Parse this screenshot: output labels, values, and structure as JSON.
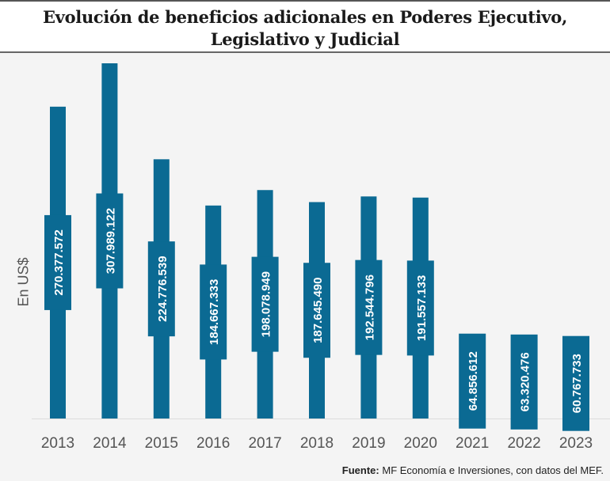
{
  "title": "Evolución de beneficios adicionales en Poderes Ejecutivo, Legislativo y Judicial",
  "title_lines": [
    "Evolución de beneficios adicionales en Poderes Ejecutivo,",
    "Legislativo y Judicial"
  ],
  "source": {
    "label": "Fuente:",
    "text": " MF Economía e Inversiones, con datos del MEF."
  },
  "chart_data": {
    "type": "bar",
    "title": "Evolución de beneficios adicionales en Poderes Ejecutivo, Legislativo y Judicial",
    "xlabel": "",
    "ylabel": "En US$",
    "ylim": [
      0,
      310000000
    ],
    "grid": false,
    "color": "#0b6a93",
    "categories": [
      "2013",
      "2014",
      "2015",
      "2016",
      "2017",
      "2018",
      "2019",
      "2020",
      "2021",
      "2022",
      "2023"
    ],
    "values": [
      270377572,
      307989122,
      224776539,
      184667333,
      198078949,
      187645490,
      192544796,
      191557133,
      64856612,
      63320476,
      60767733
    ],
    "data_labels": [
      "270.377.572",
      "307.989.122",
      "224.776.539",
      "184.667.333",
      "198.078.949",
      "187.645.490",
      "192.544.796",
      "191.557.133",
      "64.856.612",
      "63.320.476",
      "60.767.733"
    ]
  }
}
